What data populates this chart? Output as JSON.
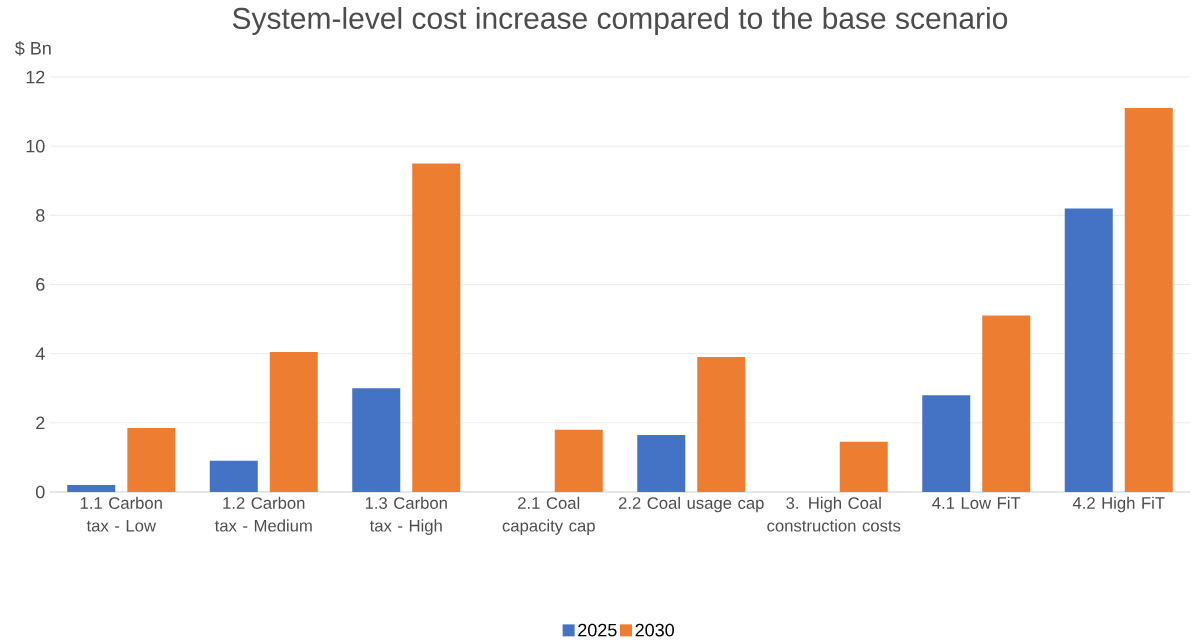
{
  "chart_data": {
    "type": "bar",
    "title": "System-level cost increase compared to the base scenario",
    "ylabel": "$ Bn",
    "categories": [
      "1.1 Carbon tax - Low",
      "1.2 Carbon tax - Medium",
      "1.3 Carbon tax - High",
      "2.1 Coal capacity cap",
      "2.2 Coal usage cap",
      "3. High Coal construction costs",
      "4.1 Low FiT",
      "4.2 High FiT"
    ],
    "series": [
      {
        "name": "2025",
        "color": "#4472c4",
        "values": [
          0.2,
          0.9,
          3.0,
          0,
          1.65,
          0,
          2.8,
          8.2
        ]
      },
      {
        "name": "2030",
        "color": "#ed7d31",
        "values": [
          1.85,
          4.05,
          9.5,
          1.8,
          3.9,
          1.45,
          5.1,
          11.1
        ]
      }
    ],
    "ylim": [
      0,
      12
    ],
    "yticks": [
      0,
      2,
      4,
      6,
      8,
      10,
      12
    ],
    "grid": "y",
    "legend": "bottom"
  }
}
